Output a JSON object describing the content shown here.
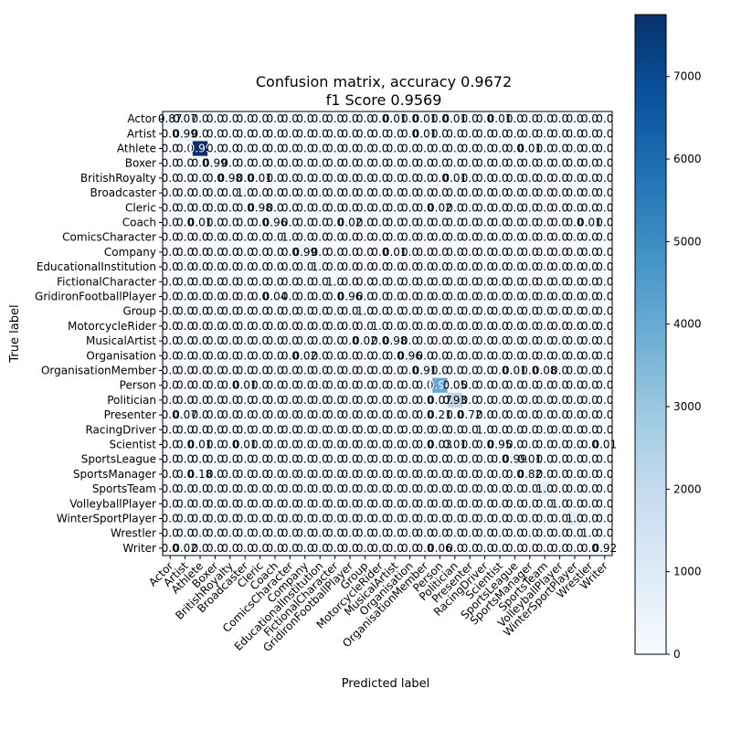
{
  "chart_data": {
    "type": "heatmap",
    "title": "Confusion matrix, accuracy 0.9672",
    "subtitle": "f1 Score 0.9569",
    "xlabel": "Predicted label",
    "ylabel": "True label",
    "labels": [
      "Actor",
      "Artist",
      "Athlete",
      "Boxer",
      "BritishRoyalty",
      "Broadcaster",
      "Cleric",
      "Coach",
      "ComicsCharacter",
      "Company",
      "EducationalInstitution",
      "FictionalCharacter",
      "GridironFootballPlayer",
      "Group",
      "MotorcycleRider",
      "MusicalArtist",
      "Organisation",
      "OrganisationMember",
      "Person",
      "Politician",
      "Presenter",
      "RacingDriver",
      "Scientist",
      "SportsLeague",
      "SportsManager",
      "SportsTeam",
      "VolleyballPlayer",
      "WinterSportPlayer",
      "Wrestler",
      "Writer"
    ],
    "counts_diag": [
      280,
      380,
      7750,
      150,
      90,
      230,
      270,
      250,
      90,
      470,
      140,
      100,
      210,
      220,
      150,
      240,
      620,
      230,
      4050,
      2200,
      110,
      140,
      190,
      220,
      240,
      700,
      90,
      740,
      90,
      180
    ],
    "diag_text": [
      "0.87",
      "0.99",
      "0.99",
      "0.99",
      "0.98",
      "1.0",
      "0.98",
      "0.96",
      "1.0",
      "0.99",
      "1.0",
      "1.0",
      "0.96",
      "1.0",
      "1.0",
      "0.98",
      "0.96",
      "0.91",
      "0.94",
      "0.93",
      "0.72",
      "1.0",
      "0.95",
      "0.99",
      "0.82",
      "1.0",
      "1.0",
      "1.0",
      "1.0",
      "0.92"
    ],
    "offdiag": [
      [
        0,
        1,
        "0.07"
      ],
      [
        0,
        15,
        "0.01"
      ],
      [
        0,
        17,
        "0.01"
      ],
      [
        0,
        19,
        "0.01"
      ],
      [
        0,
        22,
        "0.01"
      ],
      [
        1,
        17,
        "0.01"
      ],
      [
        2,
        24,
        "0.01"
      ],
      [
        4,
        6,
        "0.01"
      ],
      [
        4,
        19,
        "0.01"
      ],
      [
        6,
        18,
        "0.02"
      ],
      [
        7,
        2,
        "0.01"
      ],
      [
        7,
        12,
        "0.02"
      ],
      [
        7,
        28,
        "0.01"
      ],
      [
        9,
        15,
        "0.01"
      ],
      [
        12,
        7,
        "0.04"
      ],
      [
        15,
        13,
        "0.02"
      ],
      [
        16,
        9,
        "0.02"
      ],
      [
        17,
        23,
        "0.01"
      ],
      [
        17,
        25,
        "0.08"
      ],
      [
        18,
        5,
        "0.01"
      ],
      [
        18,
        19,
        "0.05"
      ],
      [
        19,
        18,
        "0.07"
      ],
      [
        20,
        1,
        "0.07"
      ],
      [
        20,
        18,
        "0.21"
      ],
      [
        22,
        2,
        "0.01"
      ],
      [
        22,
        5,
        "0.01"
      ],
      [
        22,
        18,
        "0.03"
      ],
      [
        22,
        19,
        "0.01"
      ],
      [
        22,
        29,
        "0.01"
      ],
      [
        23,
        24,
        "0.01"
      ],
      [
        24,
        2,
        "0.18"
      ],
      [
        29,
        1,
        "0.02"
      ],
      [
        29,
        18,
        "0.06"
      ]
    ],
    "colorbar": {
      "ticks": [
        0,
        1000,
        2000,
        3000,
        4000,
        5000,
        6000,
        7000
      ],
      "max": 7750
    },
    "colormap": "Blues"
  }
}
